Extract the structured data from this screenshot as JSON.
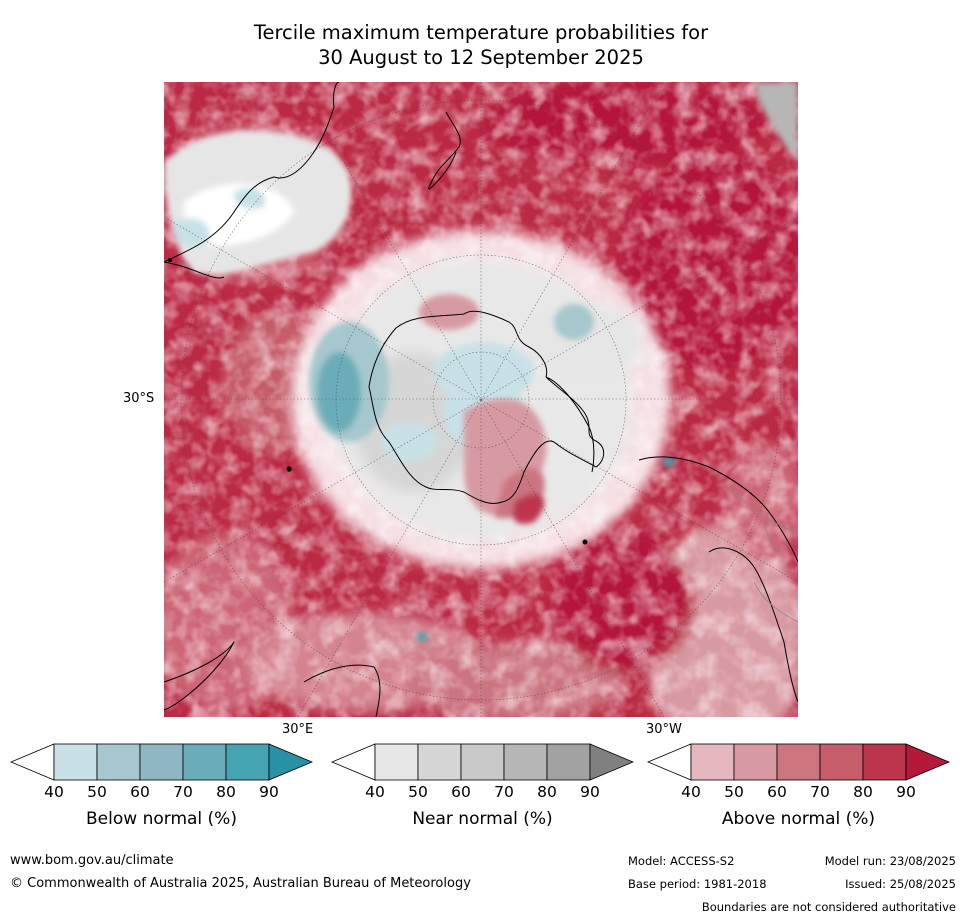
{
  "title": {
    "line1": "Tercile maximum temperature probabilities for",
    "line2": "30 August to 12 September 2025"
  },
  "map": {
    "projection": "south-polar stereographic",
    "lat_labels": [
      "30°S"
    ],
    "lon_labels": [
      "30°E",
      "30°W"
    ],
    "dominant_category": "Above normal"
  },
  "colorbars": [
    {
      "name": "Below normal (%)",
      "ticks": [
        "40",
        "50",
        "60",
        "70",
        "80",
        "90"
      ],
      "colors": [
        "#ffffff",
        "#c8e1e7",
        "#a6c7cd",
        "#8fb6c3",
        "#6aadb8",
        "#46a3b1",
        "#2a90a3"
      ]
    },
    {
      "name": "Near normal (%)",
      "ticks": [
        "40",
        "50",
        "60",
        "70",
        "80",
        "90"
      ],
      "colors": [
        "#ffffff",
        "#e6e6e6",
        "#d6d6d6",
        "#c8c8c8",
        "#b6b6b6",
        "#a2a2a2",
        "#808080"
      ]
    },
    {
      "name": "Above normal (%)",
      "ticks": [
        "40",
        "50",
        "60",
        "70",
        "80",
        "90"
      ],
      "colors": [
        "#ffffff",
        "#e4b8be",
        "#d89aa2",
        "#cb7580",
        "#c55d6b",
        "#bd354d",
        "#b4193a"
      ]
    }
  ],
  "footer": {
    "website": "www.bom.gov.au/climate",
    "copyright": "© Commonwealth of Australia 2025, Australian Bureau of Meteorology",
    "model": "Model: ACCESS-S2",
    "model_run": "Model run: 23/08/2025",
    "base_period": "Base period: 1981-2018",
    "issued": "Issued: 25/08/2025",
    "disclaimer": "Boundaries are not considered authoritative"
  }
}
